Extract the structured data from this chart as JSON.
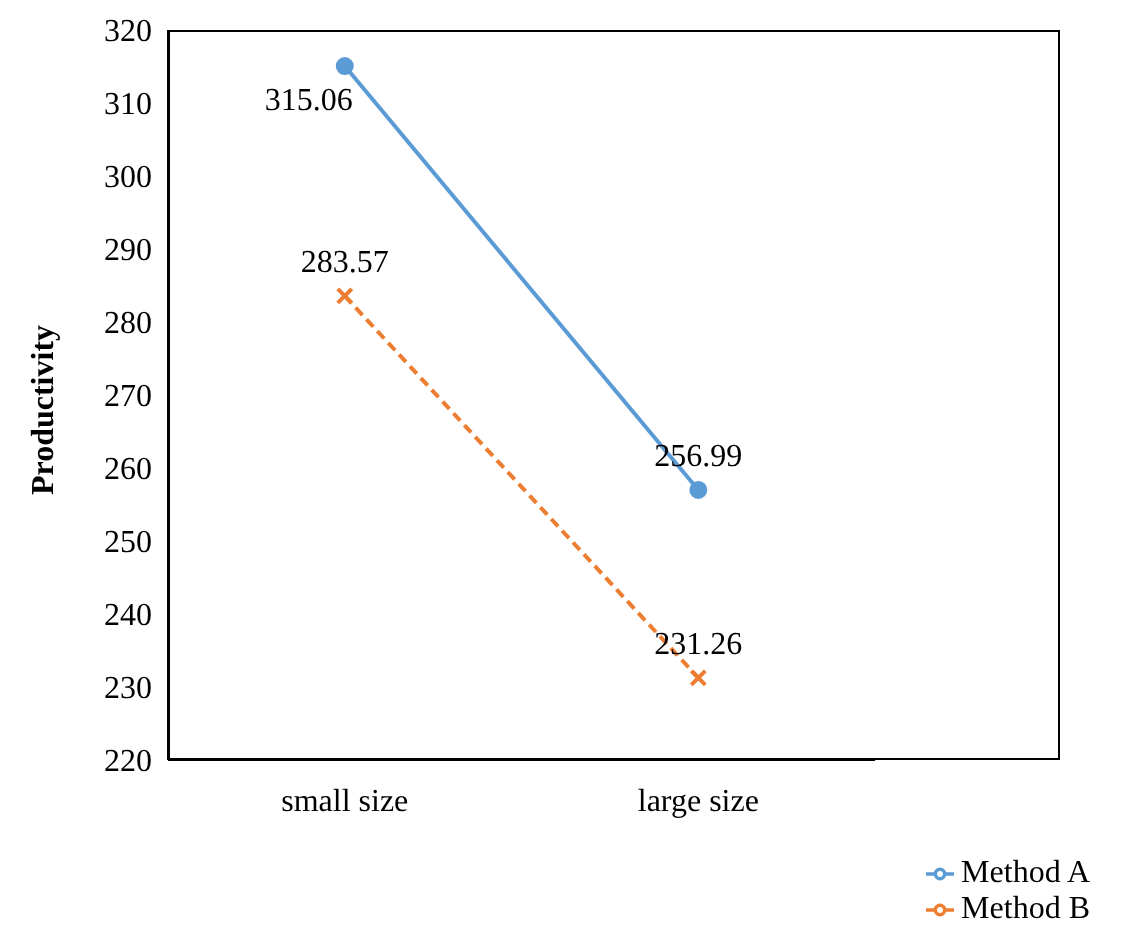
{
  "chart_data": {
    "type": "line",
    "ylabel": "Productivity",
    "categories": [
      "small size",
      "large size"
    ],
    "series": [
      {
        "name": "Method A",
        "color": "#5b9bd5",
        "values": [
          315.06,
          256.99
        ],
        "marker": "circle",
        "line_style": "solid"
      },
      {
        "name": "Method B",
        "color": "#ed7d31",
        "values": [
          283.57,
          231.26
        ],
        "marker": "cross",
        "line_style": "dashed"
      }
    ],
    "ylim": [
      220,
      320
    ],
    "yticks": [
      220,
      230,
      240,
      250,
      260,
      270,
      280,
      290,
      300,
      310,
      320
    ],
    "grid": false,
    "legend": "bottom right",
    "data_labels": true
  }
}
